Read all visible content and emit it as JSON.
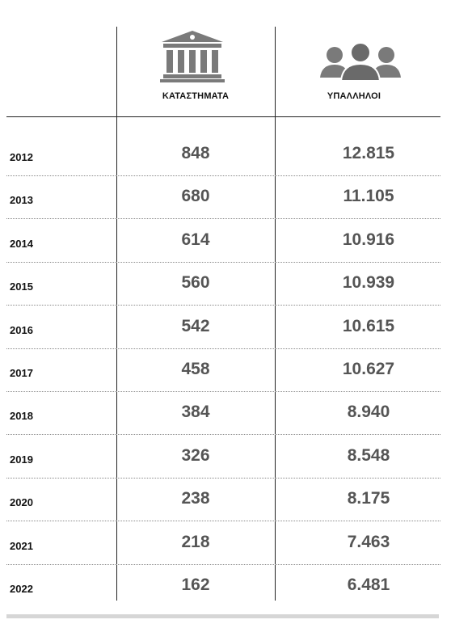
{
  "columns": {
    "stores": "ΚΑΤΑΣΤΗΜΑΤΑ",
    "employees": "ΥΠΑΛΛΗΛΟΙ"
  },
  "icons": {
    "stores": "bank-building-icon",
    "employees": "people-group-icon"
  },
  "colors": {
    "values": "#555555",
    "labels": "#111111",
    "icon": "#7a7a7a"
  },
  "chart_data": {
    "type": "table",
    "columns": [
      "",
      "ΚΑΤΑΣΤΗΜΑΤΑ",
      "ΥΠΑΛΛΗΛΟΙ"
    ],
    "rows": [
      {
        "year": "2012",
        "stores": "848",
        "employees": "12.815"
      },
      {
        "year": "2013",
        "stores": "680",
        "employees": "11.105"
      },
      {
        "year": "2014",
        "stores": "614",
        "employees": "10.916"
      },
      {
        "year": "2015",
        "stores": "560",
        "employees": "10.939"
      },
      {
        "year": "2016",
        "stores": "542",
        "employees": "10.615"
      },
      {
        "year": "2017",
        "stores": "458",
        "employees": "10.627"
      },
      {
        "year": "2018",
        "stores": "384",
        "employees": "8.940"
      },
      {
        "year": "2019",
        "stores": "326",
        "employees": "8.548"
      },
      {
        "year": "2020",
        "stores": "238",
        "employees": "8.175"
      },
      {
        "year": "2021",
        "stores": "218",
        "employees": "7.463"
      },
      {
        "year": "2022",
        "stores": "162",
        "employees": "6.481"
      }
    ]
  }
}
